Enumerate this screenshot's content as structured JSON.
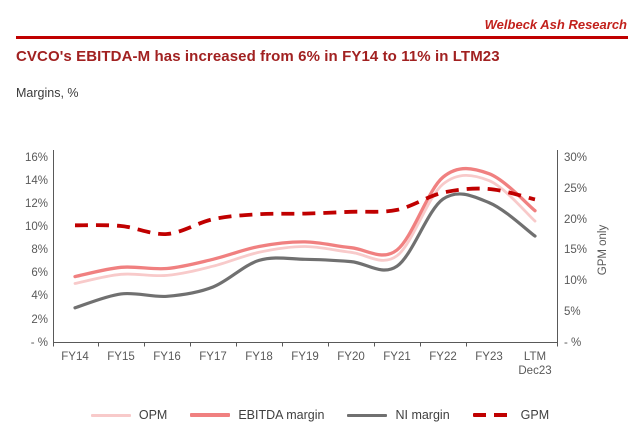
{
  "header": {
    "brand": "Welbeck Ash Research"
  },
  "title": "CVCO's EBITDA-M has increased from 6% in FY14 to 11% in LTM23",
  "subtitle": "Margins, %",
  "chart_data": {
    "type": "line",
    "categories": [
      "FY14",
      "FY15",
      "FY16",
      "FY17",
      "FY18",
      "FY19",
      "FY20",
      "FY21",
      "FY22",
      "FY23",
      "LTM Dec23"
    ],
    "x_labels": [
      "FY14",
      "FY15",
      "FY16",
      "FY17",
      "FY18",
      "FY19",
      "FY20",
      "FY21",
      "FY22",
      "FY23",
      "LTM\nDec23"
    ],
    "series": [
      {
        "name": "OPM",
        "axis": "left",
        "style": "solid",
        "color": "#f8caca",
        "values": [
          5.1,
          5.9,
          5.8,
          6.6,
          7.8,
          8.3,
          7.8,
          7.5,
          13.7,
          14.0,
          10.5
        ]
      },
      {
        "name": "EBITDA margin",
        "axis": "left",
        "style": "solid",
        "color": "#f08080",
        "values": [
          5.7,
          6.5,
          6.4,
          7.2,
          8.3,
          8.7,
          8.2,
          8.0,
          14.3,
          14.6,
          11.4
        ]
      },
      {
        "name": "NI margin",
        "axis": "left",
        "style": "solid",
        "color": "#707070",
        "values": [
          3.0,
          4.2,
          4.0,
          4.8,
          7.1,
          7.2,
          7.0,
          6.6,
          12.4,
          12.1,
          9.2
        ]
      },
      {
        "name": "GPM",
        "axis": "right",
        "style": "dashed",
        "color": "#c00000",
        "values": [
          19.0,
          18.9,
          17.6,
          20.0,
          20.8,
          20.9,
          21.2,
          21.5,
          24.3,
          24.9,
          23.2
        ]
      }
    ],
    "left_axis": {
      "ticks": [
        "16%",
        "14%",
        "12%",
        "10%",
        "8%",
        "6%",
        "4%",
        "2%",
        "- %"
      ],
      "min": 0,
      "max": 16
    },
    "right_axis": {
      "ticks": [
        "30%",
        "25%",
        "20%",
        "15%",
        "10%",
        "5%",
        "- %"
      ],
      "min": 0,
      "max": 30,
      "title": "GPM only"
    },
    "legend_position": "bottom",
    "grid": false
  }
}
